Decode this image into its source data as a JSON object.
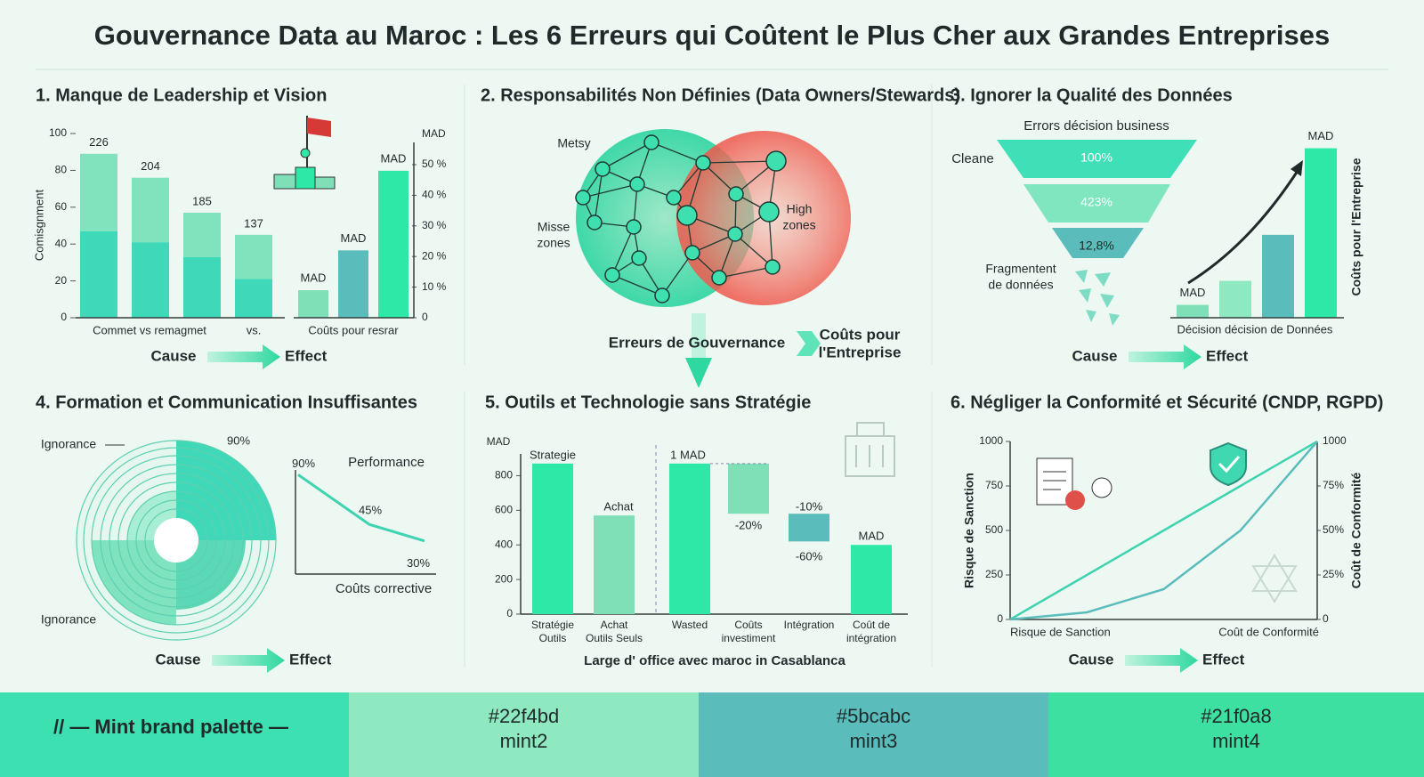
{
  "title": "Gouvernance Data au Maroc : Les 6 Erreurs qui Coûtent le Plus Cher aux Grandes Entreprises",
  "panels": [
    {
      "title": "1. Manque de Leadership et Vision",
      "left_chart": {
        "type": "bar",
        "y_label": "Comisgnment",
        "ylim": [
          0,
          100
        ],
        "yticks": [
          0,
          20,
          40,
          60,
          80,
          100
        ],
        "stacks": [
          {
            "color": "#3fd8b8",
            "values": [
              47,
              41,
              33,
              21
            ]
          },
          {
            "color": "#80e3bd",
            "values": [
              42,
              35,
              24,
              24
            ]
          }
        ],
        "annotations": [
          "226",
          "204",
          "185",
          "137"
        ],
        "x_labels": [
          "Commet vs remagmet",
          "vs."
        ]
      },
      "right_chart": {
        "type": "bar",
        "unit": "MAD",
        "ylim": [
          0,
          50
        ],
        "yticks": [
          0,
          {
            "value": 10,
            "label": "10 %"
          },
          {
            "value": 20,
            "label": "20 %"
          },
          {
            "value": 30,
            "label": "30 %"
          },
          {
            "value": 40,
            "label": "40 %"
          },
          {
            "value": 50,
            "label": "50 %"
          }
        ],
        "values": [
          9,
          22,
          48
        ],
        "colors": [
          "#7fe0b8",
          "#5bbcbc",
          "#2ee8a8"
        ],
        "annotations": [
          "MAD",
          "MAD",
          "MAD"
        ],
        "x_label": "Coûts pour resrar"
      },
      "cause": "Cause",
      "effect": "Effect"
    },
    {
      "title": "2. Responsabilités Non Définies (Data Owners/Stewards)",
      "labels": [
        [
          "Metsy"
        ],
        [
          "Misse",
          "zones"
        ],
        [
          "High",
          "zones"
        ]
      ],
      "flow": {
        "cause": "Erreurs de Gouvernance",
        "effect": [
          "Coûts pour",
          "l'Entreprise"
        ]
      }
    },
    {
      "title": "3. Ignorer la Qualité des Données",
      "funnel": {
        "header": "Errors décision business",
        "side_label": "Cleane",
        "stages": [
          "100%",
          "423%",
          "12,8%"
        ],
        "bottom_label": [
          "Fragmentent",
          "de données"
        ]
      },
      "chart": {
        "type": "bar",
        "ylim": [
          0,
          100
        ],
        "values": [
          7,
          20,
          45,
          92
        ],
        "colors": [
          "#7fe0b8",
          "#8ee8c0",
          "#5bbcbc",
          "#2ee8a8"
        ],
        "annotations": [
          "MAD",
          null,
          null,
          "MAD"
        ],
        "x_label": "Décision décision de Données",
        "y_label": "Coûts pour l'Entreprise"
      },
      "cause": "Cause",
      "effect": "Effect"
    },
    {
      "title": "4. Formation et Communication Insuffisantes",
      "radial": {
        "labels": [
          "Ignorance",
          "Ignorance"
        ],
        "value_label": "90%"
      },
      "chart": {
        "type": "line",
        "title": "Performance",
        "x_label": "Coûts corrective",
        "ylim": [
          0,
          100
        ],
        "values": [
          90,
          45,
          30
        ],
        "value_labels": [
          "90%",
          "45%",
          "30%"
        ],
        "color": "#3fd3b0"
      },
      "cause": "Cause",
      "effect": "Effect"
    },
    {
      "title": "5. Outils et Technologie sans Stratégie",
      "chart": {
        "type": "waterfall",
        "unit": "MAD",
        "ylim": [
          0,
          900
        ],
        "yticks": [
          0,
          200,
          400,
          600,
          800
        ],
        "categories": [
          [
            "Stratégie",
            "Outils"
          ],
          [
            "Achat",
            "Outils Seuls"
          ],
          [
            "Wasted"
          ],
          [
            "Coûts",
            "investiment"
          ],
          [
            "Intégration"
          ],
          [
            "Coût de",
            "intégration"
          ]
        ],
        "ranges": [
          [
            0,
            870
          ],
          [
            0,
            570
          ],
          [
            0,
            870
          ],
          [
            580,
            870
          ],
          [
            420,
            580
          ],
          [
            0,
            400
          ]
        ],
        "colors": [
          "#2ee8a8",
          "#7fe0b8",
          "#2ee8a8",
          "#7fe0b8",
          "#5bbcbc",
          "#2ee8a8"
        ],
        "annotations": [
          "Strategie",
          "Achat",
          "1 MAD",
          "-20%",
          "-10%",
          "-60%",
          "MAD"
        ],
        "x_label": "Large d' office avec maroc in Casablanca"
      }
    },
    {
      "title": "6. Négliger la Conformité et Sécurité (CNDP, RGPD)",
      "chart": {
        "type": "line",
        "y_label": "Risque de Sanction",
        "y2_label": "Coût de Conformité",
        "ylim": [
          0,
          1000
        ],
        "yticks": [
          0,
          250,
          500,
          750,
          1000
        ],
        "y2lim": [
          0,
          100
        ],
        "y2ticks": [
          0,
          {
            "value": 25,
            "label": "25%"
          },
          {
            "value": 50,
            "label": "50%"
          },
          {
            "value": 75,
            "label": "75%"
          }
        ],
        "y2_top_label": "1000",
        "categories": [
          "Risque de Sanction",
          null,
          null,
          null,
          "Coût de Conformité"
        ],
        "series": [
          {
            "color": "#3fd3b0",
            "values": [
              0,
              250,
              500,
              750,
              1000
            ]
          },
          {
            "color": "#5bbcbc",
            "values": [
              0,
              40,
              170,
              500,
              1000
            ]
          }
        ]
      },
      "cause": "Cause",
      "effect": "Effect"
    }
  ],
  "palette": {
    "label": "// — Mint brand palette —",
    "swatches": [
      {
        "hex": "#22f4bd",
        "name": "mint2",
        "color": "#8ee8c0"
      },
      {
        "hex": "#5bcabc",
        "name": "mint3",
        "color": "#5bbcbc"
      },
      {
        "hex": "#21f0a8",
        "name": "mint4",
        "color": "#3de0a0"
      }
    ]
  }
}
